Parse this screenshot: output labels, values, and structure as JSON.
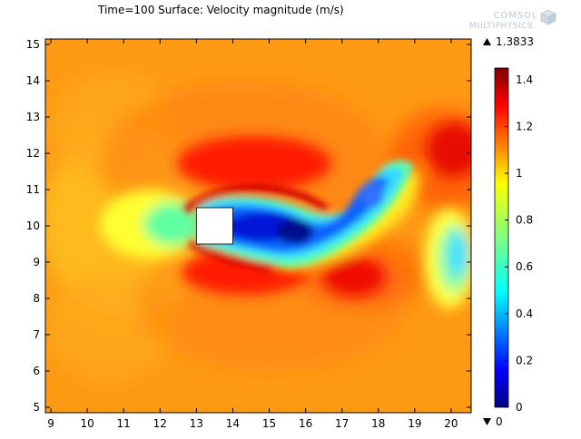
{
  "chart_data": {
    "type": "heatmap",
    "title": "Time=100   Surface: Velocity magnitude (m/s)",
    "brand": {
      "line1": "COMSOL",
      "line2": "MULTIPHYSICS"
    },
    "xlim": [
      8.85,
      20.55
    ],
    "ylim": [
      4.85,
      15.15
    ],
    "x_ticks": [
      9,
      10,
      11,
      12,
      13,
      14,
      15,
      16,
      17,
      18,
      19,
      20
    ],
    "y_ticks": [
      5,
      6,
      7,
      8,
      9,
      10,
      11,
      12,
      13,
      14,
      15
    ],
    "obstacle": {
      "x": [
        13,
        14
      ],
      "y": [
        9.5,
        10.5
      ],
      "color": "#ffffff"
    },
    "colorbar": {
      "range": [
        0,
        1.45
      ],
      "ticks": [
        0,
        0.2,
        0.4,
        0.6,
        0.8,
        1,
        1.2,
        1.4
      ],
      "max_label": "1.3833",
      "min_label": "0",
      "max_marker": "triangle-up",
      "min_marker": "triangle-down",
      "colormap": "jet"
    },
    "field_description_values": {
      "freestream": 1.05,
      "stagnation_front": 0.75,
      "shear_maximum_top": 1.3,
      "shear_maximum_bottom": 1.3,
      "wake_core_minimum": 0.05
    }
  }
}
